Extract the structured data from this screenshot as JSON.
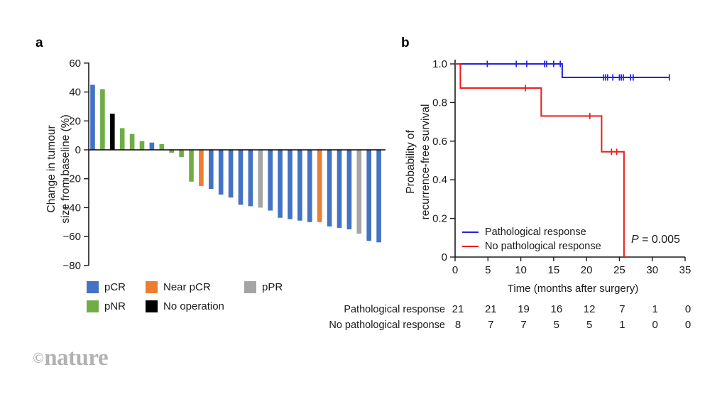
{
  "panel_a": {
    "label": "a",
    "y_axis_title_lines": [
      "Change in tumour",
      "size from baseline (%)"
    ],
    "legend_columns": [
      [
        {
          "label": "pCR",
          "group": "pCR",
          "color": "#4472c4"
        },
        {
          "label": "pNR",
          "group": "pNR",
          "color": "#70ad47"
        }
      ],
      [
        {
          "label": "Near pCR",
          "group": "Near pCR",
          "color": "#ed7d31"
        },
        {
          "label": "No operation",
          "group": "No operation",
          "color": "#000000"
        }
      ],
      [
        {
          "label": "pPR",
          "group": "pPR",
          "color": "#a5a5a5"
        }
      ]
    ]
  },
  "panel_b": {
    "label": "b",
    "p_label": "P",
    "p_rest": " = 0.005",
    "legend": [
      {
        "label": "Pathological response",
        "color": "#2222e0"
      },
      {
        "label": "No pathological response",
        "color": "#ee1c1c"
      }
    ],
    "risk_table": {
      "rows": [
        {
          "label": "Pathological response",
          "counts": [
            "21",
            "21",
            "19",
            "16",
            "12",
            "7",
            "1",
            "0"
          ]
        },
        {
          "label": "No pathological response",
          "counts": [
            "8",
            "7",
            "7",
            "5",
            "5",
            "1",
            "0",
            "0"
          ]
        }
      ]
    }
  },
  "watermark": {
    "symbol": "©",
    "name": "nature"
  },
  "chart_data": [
    {
      "type": "bar",
      "title": "",
      "xlabel": "",
      "ylabel": "Change in tumour size from baseline (%)",
      "ylabel_lines": [
        "Change in tumour",
        "size from baseline (%)"
      ],
      "ylim": [
        -80,
        60
      ],
      "grid": false,
      "ytick_values": [
        60,
        40,
        20,
        0,
        -20,
        -40,
        -60,
        -80
      ],
      "ytick_labels": [
        "60",
        "40",
        "20",
        "0",
        "−20",
        "−40",
        "−60",
        "−80"
      ],
      "group_colors": {
        "pCR": "#4472c4",
        "pNR": "#70ad47",
        "Near pCR": "#ed7d31",
        "No operation": "#000000",
        "pPR": "#a5a5a5"
      },
      "bars": [
        {
          "value": 45,
          "group": "pCR"
        },
        {
          "value": 42,
          "group": "pNR"
        },
        {
          "value": 25,
          "group": "No operation"
        },
        {
          "value": 15,
          "group": "pNR"
        },
        {
          "value": 11,
          "group": "pNR"
        },
        {
          "value": 6,
          "group": "pNR"
        },
        {
          "value": 5,
          "group": "pCR"
        },
        {
          "value": 4,
          "group": "pNR"
        },
        {
          "value": -2,
          "group": "pNR"
        },
        {
          "value": -5,
          "group": "pNR"
        },
        {
          "value": -22,
          "group": "pNR"
        },
        {
          "value": -25,
          "group": "Near pCR"
        },
        {
          "value": -27,
          "group": "pCR"
        },
        {
          "value": -31,
          "group": "pCR"
        },
        {
          "value": -33,
          "group": "pCR"
        },
        {
          "value": -38,
          "group": "pCR"
        },
        {
          "value": -39,
          "group": "pCR"
        },
        {
          "value": -40,
          "group": "pPR"
        },
        {
          "value": -42,
          "group": "pCR"
        },
        {
          "value": -47,
          "group": "pCR"
        },
        {
          "value": -48,
          "group": "pCR"
        },
        {
          "value": -49,
          "group": "pCR"
        },
        {
          "value": -50,
          "group": "pCR"
        },
        {
          "value": -50,
          "group": "Near pCR"
        },
        {
          "value": -53,
          "group": "pCR"
        },
        {
          "value": -54,
          "group": "pCR"
        },
        {
          "value": -55,
          "group": "pCR"
        },
        {
          "value": -58,
          "group": "pPR"
        },
        {
          "value": -63,
          "group": "pCR"
        },
        {
          "value": -64,
          "group": "pCR"
        }
      ]
    },
    {
      "type": "line",
      "subtype": "kaplan-meier-step",
      "title": "",
      "xlabel": "Time (months after surgery)",
      "ylabel": "Probability of recurrence-free survival",
      "ylabel_lines": [
        "Probability of",
        "recurrence-free survival"
      ],
      "xlim": [
        0,
        35
      ],
      "ylim": [
        0,
        1
      ],
      "grid": false,
      "legend_position": "lower-left-inside",
      "annotation": "P = 0.005",
      "xtick_values": [
        0,
        5,
        10,
        15,
        20,
        25,
        30,
        35
      ],
      "xtick_labels": [
        "0",
        "5",
        "10",
        "15",
        "20",
        "25",
        "30",
        "35"
      ],
      "ytick_values": [
        1.0,
        0.8,
        0.6,
        0.4,
        0.2,
        0
      ],
      "ytick_labels": [
        "1.0",
        "0.8",
        "0.6",
        "0.4",
        "0.2",
        "0"
      ],
      "series": [
        {
          "name": "Pathological response",
          "color": "#2222e0",
          "steps": [
            [
              0,
              1.0
            ],
            [
              16.3,
              1.0
            ],
            [
              16.3,
              0.93
            ],
            [
              32.6,
              0.93
            ]
          ],
          "censors": [
            [
              4.9,
              1.0
            ],
            [
              9.3,
              1.0
            ],
            [
              10.9,
              1.0
            ],
            [
              13.6,
              1.0
            ],
            [
              13.9,
              1.0
            ],
            [
              15.0,
              1.0
            ],
            [
              16.0,
              1.0
            ],
            [
              22.6,
              0.93
            ],
            [
              22.9,
              0.93
            ],
            [
              23.2,
              0.93
            ],
            [
              24.0,
              0.93
            ],
            [
              25.0,
              0.93
            ],
            [
              25.3,
              0.93
            ],
            [
              25.6,
              0.93
            ],
            [
              26.7,
              0.93
            ],
            [
              27.1,
              0.93
            ],
            [
              32.6,
              0.93
            ]
          ]
        },
        {
          "name": "No pathological response",
          "color": "#ee1c1c",
          "steps": [
            [
              0,
              1.0
            ],
            [
              0.8,
              1.0
            ],
            [
              0.8,
              0.875
            ],
            [
              13.1,
              0.875
            ],
            [
              13.1,
              0.73
            ],
            [
              22.3,
              0.73
            ],
            [
              22.3,
              0.545
            ],
            [
              25.7,
              0.545
            ],
            [
              25.7,
              0
            ]
          ],
          "censors": [
            [
              10.7,
              0.875
            ],
            [
              20.5,
              0.73
            ],
            [
              23.8,
              0.545
            ],
            [
              24.6,
              0.545
            ]
          ]
        }
      ]
    }
  ]
}
